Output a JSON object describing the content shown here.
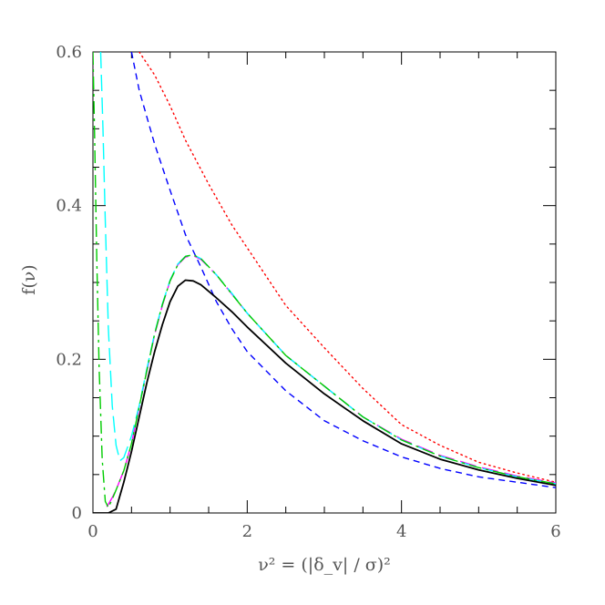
{
  "chart_data": {
    "type": "line",
    "title": "",
    "xlabel": "ν²   =  (|δ_v| / σ)²",
    "ylabel": "f(ν)",
    "xlim": [
      0,
      6
    ],
    "ylim": [
      0,
      0.6
    ],
    "x_ticks": [
      0,
      2,
      4,
      6
    ],
    "x_tick_labels": [
      "0",
      "2",
      "4",
      "6"
    ],
    "y_ticks": [
      0,
      0.2,
      0.4,
      0.6
    ],
    "y_tick_labels": [
      "0",
      "0.2",
      "0.4",
      "0.6"
    ],
    "grid": false,
    "legend": "none",
    "series": [
      {
        "color": "#ff0000",
        "style": "dotted",
        "points": [
          [
            0.6,
            0.6
          ],
          [
            0.8,
            0.57
          ],
          [
            1.0,
            0.53
          ],
          [
            1.2,
            0.485
          ],
          [
            1.5,
            0.428
          ],
          [
            1.8,
            0.375
          ],
          [
            2.0,
            0.345
          ],
          [
            2.5,
            0.27
          ],
          [
            3.0,
            0.215
          ],
          [
            3.5,
            0.162
          ],
          [
            4.0,
            0.115
          ],
          [
            4.5,
            0.088
          ],
          [
            5.0,
            0.066
          ],
          [
            5.5,
            0.052
          ],
          [
            6.0,
            0.04
          ]
        ]
      },
      {
        "color": "#0000ff",
        "style": "dashed",
        "points": [
          [
            0.5,
            0.6
          ],
          [
            0.6,
            0.55
          ],
          [
            0.8,
            0.48
          ],
          [
            1.0,
            0.42
          ],
          [
            1.2,
            0.362
          ],
          [
            1.4,
            0.32
          ],
          [
            1.6,
            0.275
          ],
          [
            1.8,
            0.24
          ],
          [
            2.0,
            0.21
          ],
          [
            2.5,
            0.159
          ],
          [
            3.0,
            0.12
          ],
          [
            3.5,
            0.094
          ],
          [
            4.0,
            0.073
          ],
          [
            4.5,
            0.058
          ],
          [
            5.0,
            0.047
          ],
          [
            5.5,
            0.04
          ],
          [
            6.0,
            0.033
          ]
        ]
      },
      {
        "color": "#ff00ff",
        "style": "long-dash",
        "points": [
          [
            0.18,
            0.008
          ],
          [
            0.25,
            0.02
          ],
          [
            0.3,
            0.03
          ],
          [
            0.4,
            0.055
          ],
          [
            0.5,
            0.09
          ],
          [
            0.6,
            0.138
          ],
          [
            0.7,
            0.185
          ],
          [
            0.8,
            0.232
          ],
          [
            0.9,
            0.27
          ],
          [
            1.0,
            0.302
          ],
          [
            1.1,
            0.323
          ],
          [
            1.2,
            0.333
          ],
          [
            1.3,
            0.335
          ],
          [
            1.4,
            0.33
          ],
          [
            1.6,
            0.31
          ],
          [
            1.8,
            0.285
          ],
          [
            2.0,
            0.26
          ],
          [
            2.5,
            0.205
          ],
          [
            3.0,
            0.165
          ],
          [
            3.5,
            0.125
          ],
          [
            4.0,
            0.096
          ],
          [
            4.5,
            0.075
          ],
          [
            5.0,
            0.06
          ],
          [
            5.5,
            0.048
          ],
          [
            6.0,
            0.039
          ]
        ]
      },
      {
        "color": "#00ffff",
        "style": "long-dash",
        "points": [
          [
            0.1,
            0.6
          ],
          [
            0.13,
            0.5
          ],
          [
            0.16,
            0.38
          ],
          [
            0.2,
            0.24
          ],
          [
            0.25,
            0.14
          ],
          [
            0.3,
            0.088
          ],
          [
            0.35,
            0.068
          ],
          [
            0.4,
            0.072
          ],
          [
            0.5,
            0.1
          ],
          [
            0.6,
            0.14
          ],
          [
            0.7,
            0.188
          ],
          [
            0.8,
            0.234
          ],
          [
            0.9,
            0.272
          ],
          [
            1.0,
            0.303
          ],
          [
            1.1,
            0.324
          ],
          [
            1.2,
            0.334
          ],
          [
            1.3,
            0.336
          ],
          [
            1.4,
            0.331
          ],
          [
            1.6,
            0.31
          ],
          [
            1.8,
            0.286
          ],
          [
            2.0,
            0.26
          ],
          [
            2.5,
            0.205
          ],
          [
            3.0,
            0.165
          ],
          [
            3.5,
            0.125
          ],
          [
            4.0,
            0.095
          ],
          [
            4.5,
            0.074
          ],
          [
            5.0,
            0.059
          ],
          [
            5.5,
            0.047
          ],
          [
            6.0,
            0.038
          ]
        ]
      },
      {
        "color": "#00cc00",
        "style": "dash-dot",
        "points": [
          [
            0.0,
            0.6
          ],
          [
            0.02,
            0.5
          ],
          [
            0.05,
            0.33
          ],
          [
            0.08,
            0.19
          ],
          [
            0.12,
            0.07
          ],
          [
            0.16,
            0.015
          ],
          [
            0.2,
            0.007
          ],
          [
            0.25,
            0.018
          ],
          [
            0.3,
            0.03
          ],
          [
            0.4,
            0.055
          ],
          [
            0.5,
            0.09
          ],
          [
            0.6,
            0.138
          ],
          [
            0.7,
            0.186
          ],
          [
            0.8,
            0.233
          ],
          [
            0.9,
            0.271
          ],
          [
            1.0,
            0.302
          ],
          [
            1.1,
            0.323
          ],
          [
            1.2,
            0.334
          ],
          [
            1.3,
            0.336
          ],
          [
            1.4,
            0.331
          ],
          [
            1.6,
            0.31
          ],
          [
            1.8,
            0.285
          ],
          [
            2.0,
            0.26
          ],
          [
            2.5,
            0.205
          ],
          [
            3.0,
            0.165
          ],
          [
            3.5,
            0.125
          ],
          [
            4.0,
            0.095
          ],
          [
            4.5,
            0.074
          ],
          [
            5.0,
            0.059
          ],
          [
            5.5,
            0.047
          ],
          [
            6.0,
            0.038
          ]
        ]
      },
      {
        "color": "#000000",
        "style": "solid",
        "points": [
          [
            0.0,
            0.0
          ],
          [
            0.2,
            0.0
          ],
          [
            0.3,
            0.005
          ],
          [
            0.4,
            0.04
          ],
          [
            0.5,
            0.08
          ],
          [
            0.6,
            0.125
          ],
          [
            0.7,
            0.17
          ],
          [
            0.8,
            0.21
          ],
          [
            0.9,
            0.245
          ],
          [
            1.0,
            0.275
          ],
          [
            1.1,
            0.295
          ],
          [
            1.2,
            0.303
          ],
          [
            1.3,
            0.302
          ],
          [
            1.4,
            0.297
          ],
          [
            1.6,
            0.28
          ],
          [
            1.8,
            0.262
          ],
          [
            2.0,
            0.242
          ],
          [
            2.5,
            0.195
          ],
          [
            3.0,
            0.155
          ],
          [
            3.5,
            0.12
          ],
          [
            4.0,
            0.09
          ],
          [
            4.5,
            0.07
          ],
          [
            5.0,
            0.056
          ],
          [
            5.5,
            0.045
          ],
          [
            6.0,
            0.036
          ]
        ]
      }
    ]
  }
}
